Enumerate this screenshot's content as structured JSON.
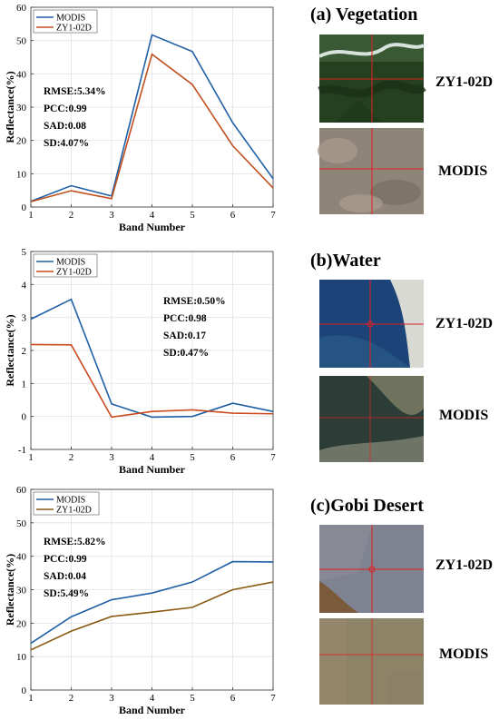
{
  "panels": [
    {
      "title": "(a) Vegetation",
      "images": [
        "ZY1-02D",
        "MODIS"
      ],
      "image_scenes": [
        "vegetation-zy1",
        "vegetation-modis"
      ]
    },
    {
      "title": "(b)Water",
      "images": [
        "ZY1-02D",
        "MODIS"
      ],
      "image_scenes": [
        "water-zy1",
        "water-modis"
      ]
    },
    {
      "title": "(c)Gobi Desert",
      "images": [
        "ZY1-02D",
        "MODIS"
      ],
      "image_scenes": [
        "gobi-zy1",
        "gobi-modis"
      ]
    }
  ],
  "colors": {
    "modis": "#1f5fa6",
    "zy_a": "#cc4a1f",
    "zy_b": "#c0501e",
    "zy_c": "#8a5a12",
    "crosshair": "#e02020"
  },
  "chart_data": [
    {
      "type": "line",
      "xlabel": "Band Number",
      "ylabel": "Reflectance(%)",
      "x": [
        1,
        2,
        3,
        4,
        5,
        6,
        7
      ],
      "xlim": [
        1,
        7
      ],
      "ylim": [
        0,
        60
      ],
      "yticks": [
        0,
        10,
        20,
        30,
        40,
        50,
        60
      ],
      "grid": true,
      "legend_position": "top-left",
      "series": [
        {
          "name": "MODIS",
          "values": [
            1.7,
            6.4,
            3.3,
            51.7,
            46.7,
            25.3,
            8.5
          ]
        },
        {
          "name": "ZY1-02D",
          "values": [
            1.6,
            4.9,
            2.5,
            45.9,
            36.8,
            18.4,
            5.7
          ]
        }
      ],
      "stats": [
        "RMSE:5.34%",
        "PCC:0.99",
        "SAD:0.08",
        "SD:4.07%"
      ]
    },
    {
      "type": "line",
      "xlabel": "Band Number",
      "ylabel": "Reflectance(%)",
      "x": [
        1,
        2,
        3,
        4,
        5,
        6,
        7
      ],
      "xlim": [
        1,
        7
      ],
      "ylim": [
        -1,
        5
      ],
      "yticks": [
        -1,
        0,
        1,
        2,
        3,
        4,
        5
      ],
      "grid": true,
      "legend_position": "top-left",
      "series": [
        {
          "name": "MODIS",
          "values": [
            2.95,
            3.55,
            0.38,
            -0.02,
            0.0,
            0.4,
            0.15
          ]
        },
        {
          "name": "ZY1-02D",
          "values": [
            2.18,
            2.17,
            -0.02,
            0.15,
            0.2,
            0.1,
            0.08
          ]
        }
      ],
      "stats": [
        "RMSE:0.50%",
        "PCC:0.98",
        "SAD:0.17",
        "SD:0.47%"
      ]
    },
    {
      "type": "line",
      "xlabel": "Band Number",
      "ylabel": "Reflectance(%)",
      "x": [
        1,
        2,
        3,
        4,
        5,
        6,
        7
      ],
      "xlim": [
        1,
        7
      ],
      "ylim": [
        0,
        60
      ],
      "yticks": [
        0,
        10,
        20,
        30,
        40,
        50,
        60
      ],
      "grid": true,
      "legend_position": "top-left",
      "series": [
        {
          "name": "MODIS",
          "values": [
            14.0,
            21.9,
            27.0,
            29.0,
            32.3,
            38.4,
            38.3
          ]
        },
        {
          "name": "ZY1-02D",
          "values": [
            12.0,
            17.6,
            22.0,
            23.3,
            24.7,
            30.0,
            32.3
          ]
        }
      ],
      "stats": [
        "RMSE:5.82%",
        "PCC:0.99",
        "SAD:0.04",
        "SD:5.49%"
      ]
    }
  ]
}
